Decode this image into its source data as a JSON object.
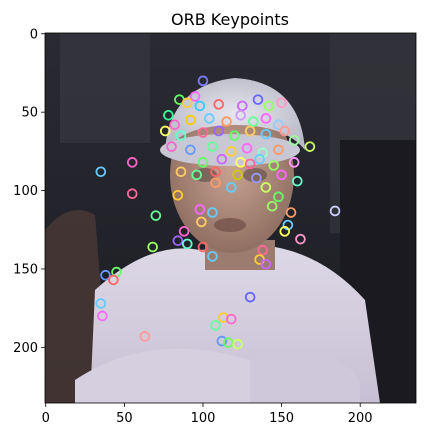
{
  "figure": {
    "title": "ORB Keypoints"
  },
  "chart_data": {
    "type": "scatter",
    "title": "ORB Keypoints",
    "xlabel": "",
    "ylabel": "",
    "xlim": [
      -0.5,
      235.5
    ],
    "ylim": [
      235.5,
      -0.5
    ],
    "y_inverted": true,
    "grid": false,
    "legend": "none",
    "x_ticks": [
      0,
      50,
      100,
      150,
      200
    ],
    "y_ticks": [
      0,
      50,
      100,
      150,
      200
    ],
    "background_image": "photo of a person wearing a white cap and white t-shirt",
    "marker": "circle-outline",
    "series": [
      {
        "values": [
          {
            "x": 100,
            "y": 30,
            "color": "#7a7aff"
          },
          {
            "x": 95,
            "y": 40,
            "color": "#ff66ff"
          },
          {
            "x": 85,
            "y": 42,
            "color": "#66ff66"
          },
          {
            "x": 90,
            "y": 44,
            "color": "#ffcc33"
          },
          {
            "x": 98,
            "y": 46,
            "color": "#33ccff"
          },
          {
            "x": 110,
            "y": 45,
            "color": "#ff6666"
          },
          {
            "x": 125,
            "y": 46,
            "color": "#cc66ff"
          },
          {
            "x": 135,
            "y": 42,
            "color": "#6666ff"
          },
          {
            "x": 142,
            "y": 46,
            "color": "#99ff66"
          },
          {
            "x": 150,
            "y": 44,
            "color": "#ff99cc"
          },
          {
            "x": 78,
            "y": 52,
            "color": "#33ff99"
          },
          {
            "x": 82,
            "y": 58,
            "color": "#ff66cc"
          },
          {
            "x": 92,
            "y": 55,
            "color": "#ffcc00"
          },
          {
            "x": 104,
            "y": 54,
            "color": "#66ccff"
          },
          {
            "x": 115,
            "y": 56,
            "color": "#ff9966"
          },
          {
            "x": 124,
            "y": 52,
            "color": "#cc99ff"
          },
          {
            "x": 132,
            "y": 56,
            "color": "#66ff99"
          },
          {
            "x": 140,
            "y": 54,
            "color": "#ff66ff"
          },
          {
            "x": 148,
            "y": 58,
            "color": "#99ccff"
          },
          {
            "x": 76,
            "y": 62,
            "color": "#ffff66"
          },
          {
            "x": 86,
            "y": 65,
            "color": "#66ffcc"
          },
          {
            "x": 100,
            "y": 63,
            "color": "#ff6699"
          },
          {
            "x": 110,
            "y": 62,
            "color": "#9966ff"
          },
          {
            "x": 120,
            "y": 65,
            "color": "#66ff66"
          },
          {
            "x": 130,
            "y": 62,
            "color": "#ffcc66"
          },
          {
            "x": 140,
            "y": 64,
            "color": "#66ccff"
          },
          {
            "x": 152,
            "y": 62,
            "color": "#ff9999"
          },
          {
            "x": 158,
            "y": 68,
            "color": "#99ff99"
          },
          {
            "x": 168,
            "y": 72,
            "color": "#ccff66"
          },
          {
            "x": 80,
            "y": 72,
            "color": "#ff66cc"
          },
          {
            "x": 92,
            "y": 74,
            "color": "#6699ff"
          },
          {
            "x": 106,
            "y": 72,
            "color": "#66ff99"
          },
          {
            "x": 118,
            "y": 75,
            "color": "#ffcc33"
          },
          {
            "x": 128,
            "y": 73,
            "color": "#ff66ff"
          },
          {
            "x": 138,
            "y": 76,
            "color": "#99ffcc"
          },
          {
            "x": 148,
            "y": 74,
            "color": "#ff9966"
          },
          {
            "x": 100,
            "y": 82,
            "color": "#66ff66"
          },
          {
            "x": 112,
            "y": 80,
            "color": "#cc66ff"
          },
          {
            "x": 124,
            "y": 82,
            "color": "#ffff66"
          },
          {
            "x": 136,
            "y": 80,
            "color": "#66ccff"
          },
          {
            "x": 130,
            "y": 83,
            "color": "#ff6699"
          },
          {
            "x": 145,
            "y": 84,
            "color": "#99ff66"
          },
          {
            "x": 158,
            "y": 82,
            "color": "#ff99ff"
          },
          {
            "x": 55,
            "y": 82,
            "color": "#ff66cc"
          },
          {
            "x": 35,
            "y": 88,
            "color": "#66ccff"
          },
          {
            "x": 86,
            "y": 88,
            "color": "#ffcc66"
          },
          {
            "x": 96,
            "y": 90,
            "color": "#66ff99"
          },
          {
            "x": 108,
            "y": 88,
            "color": "#ff6666"
          },
          {
            "x": 122,
            "y": 90,
            "color": "#cccc00"
          },
          {
            "x": 134,
            "y": 92,
            "color": "#9999ff"
          },
          {
            "x": 150,
            "y": 90,
            "color": "#ff66ff"
          },
          {
            "x": 160,
            "y": 94,
            "color": "#66ffcc"
          },
          {
            "x": 108,
            "y": 95,
            "color": "#ff9966"
          },
          {
            "x": 118,
            "y": 98,
            "color": "#66ccff"
          },
          {
            "x": 140,
            "y": 98,
            "color": "#ccff66"
          },
          {
            "x": 55,
            "y": 102,
            "color": "#ff6699"
          },
          {
            "x": 84,
            "y": 103,
            "color": "#ffcc33"
          },
          {
            "x": 148,
            "y": 104,
            "color": "#66ff66"
          },
          {
            "x": 98,
            "y": 112,
            "color": "#ff66ff"
          },
          {
            "x": 106,
            "y": 114,
            "color": "#66ccff"
          },
          {
            "x": 144,
            "y": 110,
            "color": "#99ff66"
          },
          {
            "x": 156,
            "y": 114,
            "color": "#ff9966"
          },
          {
            "x": 184,
            "y": 113,
            "color": "#ccccff"
          },
          {
            "x": 70,
            "y": 116,
            "color": "#66ff99"
          },
          {
            "x": 99,
            "y": 120,
            "color": "#ffcc66"
          },
          {
            "x": 154,
            "y": 122,
            "color": "#66ccff"
          },
          {
            "x": 152,
            "y": 126,
            "color": "#ffff66"
          },
          {
            "x": 88,
            "y": 126,
            "color": "#ff66cc"
          },
          {
            "x": 84,
            "y": 132,
            "color": "#9966ff"
          },
          {
            "x": 90,
            "y": 134,
            "color": "#66ffcc"
          },
          {
            "x": 100,
            "y": 136,
            "color": "#ff6666"
          },
          {
            "x": 162,
            "y": 131,
            "color": "#ff99cc"
          },
          {
            "x": 68,
            "y": 136,
            "color": "#99ff66"
          },
          {
            "x": 138,
            "y": 138,
            "color": "#ff6699"
          },
          {
            "x": 136,
            "y": 144,
            "color": "#ffcc33"
          },
          {
            "x": 106,
            "y": 142,
            "color": "#66ccff"
          },
          {
            "x": 140,
            "y": 147,
            "color": "#cc66ff"
          },
          {
            "x": 38,
            "y": 154,
            "color": "#6699ff"
          },
          {
            "x": 45,
            "y": 152,
            "color": "#66ff66"
          },
          {
            "x": 43,
            "y": 157,
            "color": "#ff6666"
          },
          {
            "x": 130,
            "y": 168,
            "color": "#6666ff"
          },
          {
            "x": 35,
            "y": 172,
            "color": "#66ccff"
          },
          {
            "x": 36,
            "y": 180,
            "color": "#ff66ff"
          },
          {
            "x": 113,
            "y": 181,
            "color": "#ffcc33"
          },
          {
            "x": 118,
            "y": 182,
            "color": "#ff66cc"
          },
          {
            "x": 108,
            "y": 186,
            "color": "#66ff99"
          },
          {
            "x": 63,
            "y": 193,
            "color": "#ff9999"
          },
          {
            "x": 112,
            "y": 196,
            "color": "#6699ff"
          },
          {
            "x": 116,
            "y": 197,
            "color": "#66ff66"
          },
          {
            "x": 122,
            "y": 198,
            "color": "#ccff66"
          }
        ]
      }
    ]
  }
}
